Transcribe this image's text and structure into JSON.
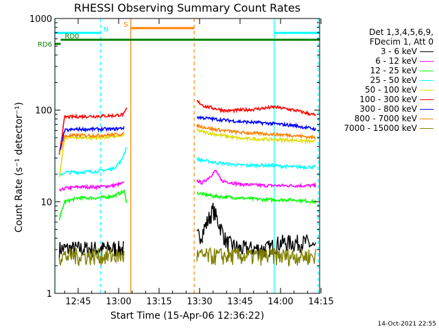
{
  "chart_data": {
    "type": "line",
    "title": "RHESSI Observing Summary Count Rates",
    "xlabel": "Start Time (15-Apr-06 12:36:22)",
    "ylabel": "Count Rate (s⁻¹ detector⁻¹)",
    "yscale": "log",
    "ylim": [
      1,
      1000
    ],
    "xlim": [
      "12:36:22",
      "14:14:30"
    ],
    "x_ticks": [
      "12:45",
      "13:00",
      "13:15",
      "13:30",
      "13:45",
      "14:00",
      "14:15"
    ],
    "y_ticks": [
      "1",
      "10",
      "100",
      "1000"
    ],
    "legend_header": [
      "Det 1,3,4,5,6,9,",
      "FDecim 1, Att 0"
    ],
    "legend_position": "right",
    "series": [
      {
        "name": "3 - 6 keV",
        "color": "#000000",
        "segments": [
          {
            "t": [
              "12:38",
              "12:45",
              "12:52",
              "12:58",
              "13:02"
            ],
            "v": [
              3,
              3,
              3,
              3,
              3
            ]
          },
          {
            "t": [
              "13:29",
              "13:31",
              "13:33",
              "13:35",
              "13:38",
              "13:40",
              "13:45",
              "13:55",
              "14:00",
              "14:05",
              "14:10",
              "14:13"
            ],
            "v": [
              4,
              4.5,
              6,
              8,
              5,
              3.5,
              3,
              3,
              3.5,
              3.5,
              3.5,
              3
            ]
          }
        ]
      },
      {
        "name": "6 - 12 keV",
        "color": "#ff00ff",
        "segments": [
          {
            "t": [
              "12:38",
              "12:40",
              "12:45",
              "12:52",
              "12:58",
              "13:02"
            ],
            "v": [
              13,
              14,
              14.5,
              14.5,
              15,
              16
            ]
          },
          {
            "t": [
              "13:29",
              "13:31",
              "13:34",
              "13:36",
              "13:38",
              "13:45",
              "13:55",
              "14:05",
              "14:13"
            ],
            "v": [
              17,
              16,
              19,
              22,
              17,
              15.5,
              15,
              15,
              15
            ]
          }
        ]
      },
      {
        "name": "12 - 25 keV",
        "color": "#00ff00",
        "segments": [
          {
            "t": [
              "12:38",
              "12:40",
              "12:45",
              "12:52",
              "12:58",
              "13:02",
              "13:03"
            ],
            "v": [
              6.5,
              10,
              11,
              11,
              11.5,
              13,
              10
            ]
          },
          {
            "t": [
              "13:29",
              "13:35",
              "13:45",
              "13:55",
              "14:05",
              "14:13"
            ],
            "v": [
              12.5,
              11.5,
              11,
              10.5,
              10.5,
              10
            ]
          }
        ]
      },
      {
        "name": "25 - 50 keV",
        "color": "#00ffff",
        "segments": [
          {
            "t": [
              "12:38",
              "12:40",
              "12:45",
              "12:52",
              "12:58",
              "13:01",
              "13:03"
            ],
            "v": [
              19,
              21,
              21,
              21.5,
              23,
              28,
              40
            ]
          },
          {
            "t": [
              "13:29",
              "13:35",
              "13:45",
              "13:55",
              "14:05",
              "14:13"
            ],
            "v": [
              29,
              27,
              25,
              25,
              24,
              24
            ]
          }
        ]
      },
      {
        "name": "50 - 100 keV",
        "color": "#dddd00",
        "segments": [
          {
            "t": [
              "12:38",
              "12:40",
              "12:45",
              "12:52",
              "12:58",
              "13:02"
            ],
            "v": [
              18,
              50,
              50,
              50,
              51,
              53
            ]
          },
          {
            "t": [
              "13:29",
              "13:35",
              "13:45",
              "13:55",
              "14:05",
              "14:13"
            ],
            "v": [
              60,
              55,
              49,
              48,
              47,
              45
            ]
          }
        ]
      },
      {
        "name": "100 - 300 keV",
        "color": "#ff0000",
        "segments": [
          {
            "t": [
              "12:38",
              "12:40",
              "12:45",
              "12:52",
              "12:58",
              "13:02",
              "13:03"
            ],
            "v": [
              33,
              84,
              85,
              86,
              87,
              90,
              105
            ]
          },
          {
            "t": [
              "13:29",
              "13:32",
              "13:40",
              "13:50",
              "13:58",
              "14:05",
              "14:13"
            ],
            "v": [
              125,
              110,
              98,
              102,
              108,
              100,
              88
            ]
          }
        ]
      },
      {
        "name": "300 - 800 keV",
        "color": "#0000ff",
        "segments": [
          {
            "t": [
              "12:38",
              "12:40",
              "12:45",
              "12:52",
              "12:58",
              "13:02"
            ],
            "v": [
              33,
              60,
              62,
              62,
              62,
              64
            ]
          },
          {
            "t": [
              "13:29",
              "13:35",
              "13:45",
              "13:55",
              "14:05",
              "14:13"
            ],
            "v": [
              84,
              80,
              75,
              72,
              68,
              62
            ]
          }
        ]
      },
      {
        "name": "800 - 7000 keV",
        "color": "#ff8000",
        "segments": [
          {
            "t": [
              "12:38",
              "12:40",
              "12:45",
              "12:52",
              "12:58",
              "13:02"
            ],
            "v": [
              33,
              52,
              53,
              53,
              54,
              55
            ]
          },
          {
            "t": [
              "13:29",
              "13:35",
              "13:45",
              "13:55",
              "14:05",
              "14:13"
            ],
            "v": [
              68,
              62,
              57,
              55,
              53,
              50
            ]
          }
        ]
      },
      {
        "name": "7000 - 15000 keV",
        "color": "#808000",
        "segments": [
          {
            "t": [
              "12:38",
              "12:45",
              "12:52",
              "12:58",
              "13:02"
            ],
            "v": [
              2.5,
              2.5,
              2.5,
              2.5,
              2.5
            ]
          },
          {
            "t": [
              "13:29",
              "13:40",
              "13:50",
              "14:00",
              "14:13"
            ],
            "v": [
              2.5,
              2.5,
              2.5,
              2.5,
              2.5
            ]
          }
        ]
      }
    ],
    "observing_flags": [
      {
        "label": "N",
        "color": "#00ffff",
        "segments": [
          [
            "12:36:22",
            "12:53:20"
          ],
          [
            "13:57:40",
            "14:14:30"
          ]
        ]
      },
      {
        "label": "S",
        "color": "#ff8000",
        "segments": [
          [
            "13:04:30",
            "13:28:00"
          ]
        ]
      },
      {
        "label": "RD6",
        "color": "#008000",
        "segments": [
          [
            "12:36:22",
            "12:38:30"
          ]
        ]
      },
      {
        "label": "RD0",
        "color": "#008000",
        "segments": [
          [
            "12:38:30",
            "14:14:30"
          ]
        ]
      }
    ],
    "vertical_markers": [
      {
        "t": "12:36:22",
        "color": "#00ffff",
        "style": "solid"
      },
      {
        "t": "12:53:20",
        "color": "#00ffff",
        "style": "dashed"
      },
      {
        "t": "13:04:30",
        "color": "#ff8000",
        "style": "solid"
      },
      {
        "t": "13:28:00",
        "color": "#ff8000",
        "style": "dashed"
      },
      {
        "t": "13:57:40",
        "color": "#00ffff",
        "style": "solid"
      },
      {
        "t": "14:14:00",
        "color": "#00ffff",
        "style": "dashed"
      }
    ]
  },
  "footer_timestamp": "14-Oct-2021 22:55"
}
